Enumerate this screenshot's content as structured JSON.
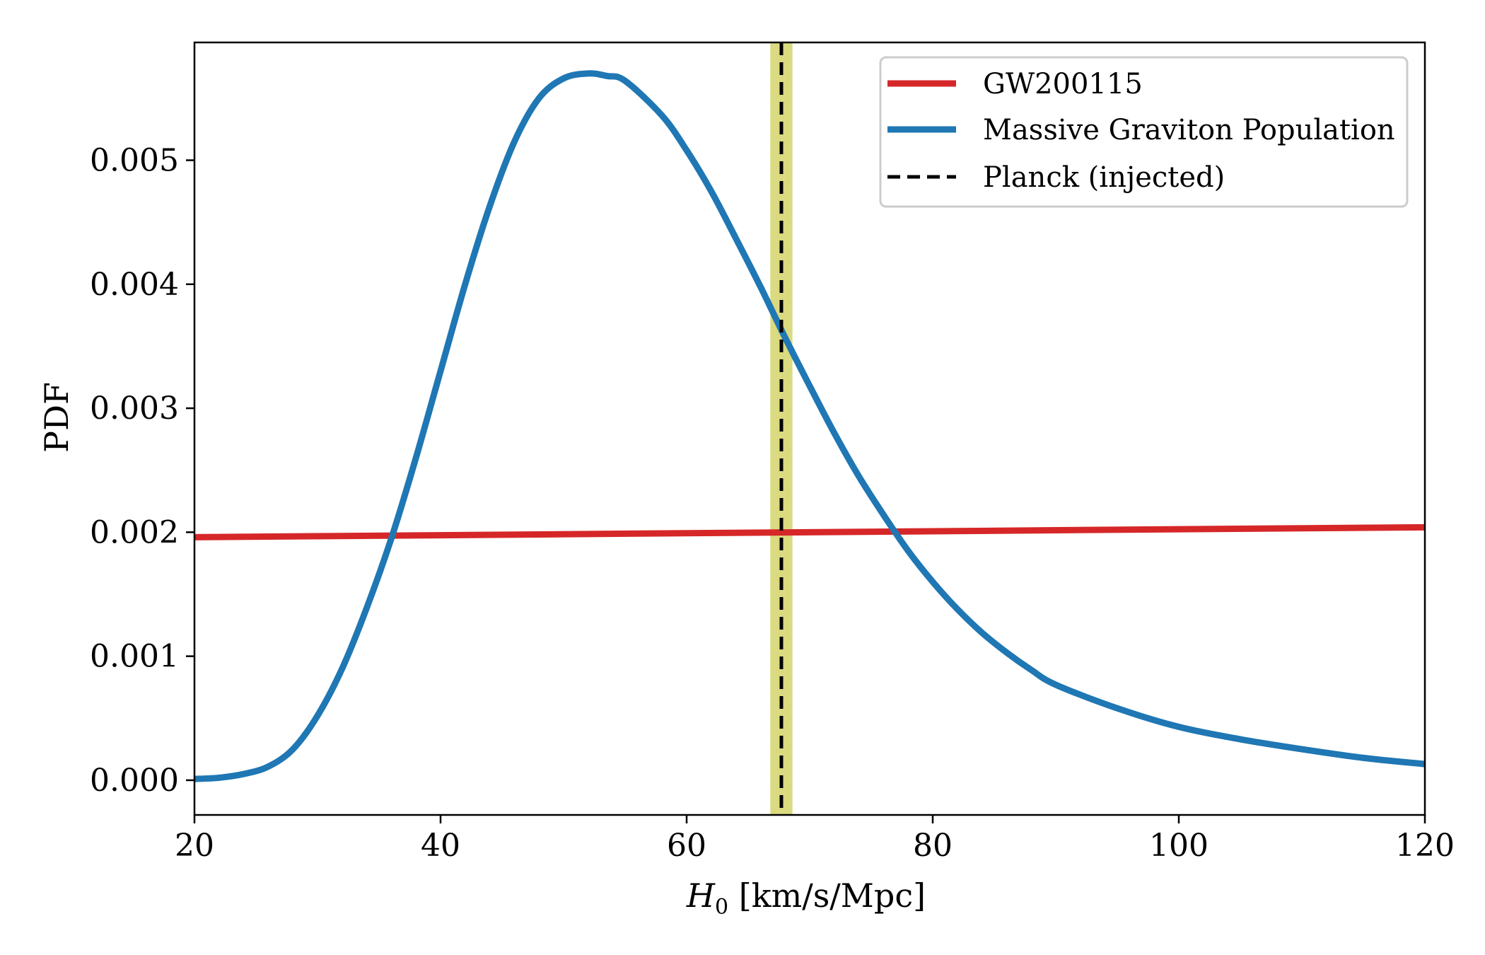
{
  "chart_data": {
    "type": "line",
    "title": "",
    "xlabel": "H0 [km/s/Mpc]",
    "xlabel_main": "H",
    "xlabel_sub": "0",
    "xlabel_units": " [km/s/Mpc]",
    "ylabel": "PDF",
    "xlim": [
      20,
      120
    ],
    "ylim": [
      -0.00028,
      0.00595
    ],
    "xticks": [
      20,
      40,
      60,
      80,
      100,
      120
    ],
    "xtick_labels": [
      "20",
      "40",
      "60",
      "80",
      "100",
      "120"
    ],
    "yticks": [
      0.0,
      0.001,
      0.002,
      0.003,
      0.004,
      0.005
    ],
    "ytick_labels": [
      "0.000",
      "0.001",
      "0.002",
      "0.003",
      "0.004",
      "0.005"
    ],
    "legend_position": "top-right",
    "series": [
      {
        "name": "GW200115",
        "color": "#d62728",
        "style": "solid",
        "x": [
          20,
          120
        ],
        "y": [
          0.00196,
          0.00204
        ]
      },
      {
        "name": "Massive Graviton Population",
        "color": "#1f77b4",
        "style": "solid",
        "x": [
          20,
          22,
          24,
          26,
          28,
          30,
          32,
          34,
          36,
          38,
          40,
          42,
          44,
          46,
          48,
          50,
          52,
          53.5,
          55,
          58,
          60,
          62,
          64,
          66,
          68,
          70,
          72,
          74,
          76,
          78,
          80,
          82,
          84,
          86,
          88,
          90,
          95,
          100,
          105,
          110,
          115,
          120
        ],
        "y": [
          1e-05,
          2e-05,
          5e-05,
          0.00011,
          0.00025,
          0.00052,
          0.0009,
          0.00139,
          0.00195,
          0.0026,
          0.0033,
          0.004,
          0.00463,
          0.00515,
          0.0055,
          0.00566,
          0.0057,
          0.00568,
          0.00564,
          0.00536,
          0.00508,
          0.00475,
          0.00437,
          0.00398,
          0.00357,
          0.00318,
          0.0028,
          0.00245,
          0.00214,
          0.00185,
          0.0016,
          0.00138,
          0.00119,
          0.00103,
          0.00089,
          0.00077,
          0.00058,
          0.00043,
          0.00033,
          0.00025,
          0.00018,
          0.00013
        ]
      },
      {
        "name": "Planck (injected)",
        "color": "#000000",
        "style": "dashed",
        "x_value": 67.7,
        "band": [
          66.8,
          68.6
        ],
        "band_color": "#d4d46a"
      }
    ]
  }
}
